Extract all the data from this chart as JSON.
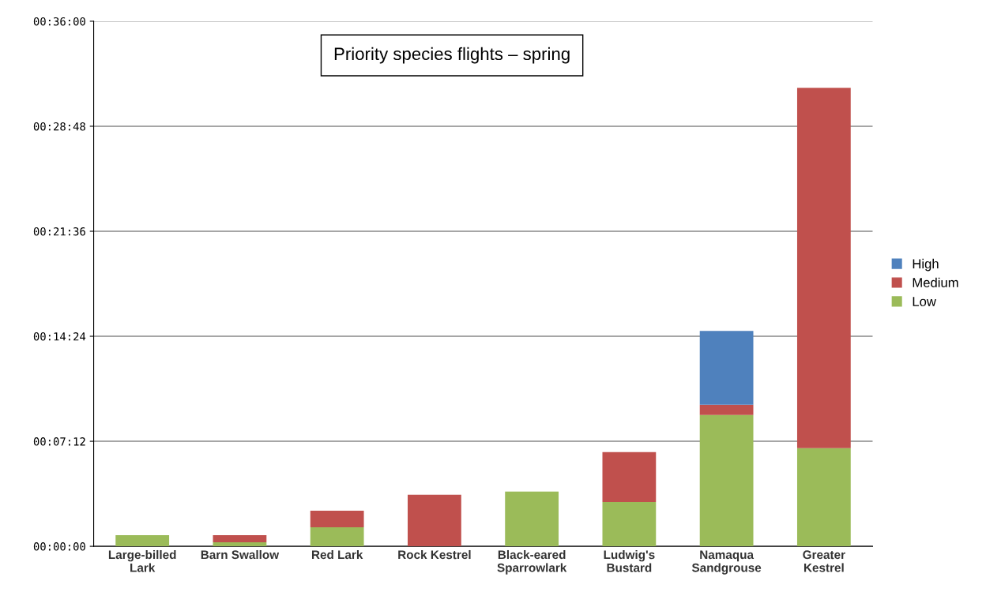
{
  "chart_data": {
    "type": "bar",
    "title": "Priority species flights – spring",
    "stacked": true,
    "categories": [
      "Large-billed Lark",
      "Barn Swallow",
      "Red Lark",
      "Rock Kestrel",
      "Black-eared Sparrowlark",
      "Ludwig's Bustard",
      "Namaqua Sandgrouse",
      "Greater Kestrel"
    ],
    "series": [
      {
        "name": "Low",
        "color": "#9bbb59",
        "values": [
          0.76,
          0.27,
          1.3,
          0,
          3.75,
          3.04,
          9.0,
          6.73
        ]
      },
      {
        "name": "Medium",
        "color": "#c0504d",
        "values": [
          0,
          0.49,
          1.14,
          3.53,
          0,
          3.42,
          0.71,
          24.7
        ]
      },
      {
        "name": "High",
        "color": "#4f81bd",
        "values": [
          0,
          0,
          0,
          0,
          0,
          0,
          5.05,
          0
        ]
      }
    ],
    "ylim": [
      0,
      36
    ],
    "yticks": [
      {
        "value": 0,
        "label": "00:00:00"
      },
      {
        "value": 7.2,
        "label": "00:07:12"
      },
      {
        "value": 14.4,
        "label": "00:14:24"
      },
      {
        "value": 21.6,
        "label": "00:21:36"
      },
      {
        "value": 28.8,
        "label": "00:28:48"
      },
      {
        "value": 36,
        "label": "00:36:00"
      }
    ],
    "grid": "y",
    "legend": "right"
  }
}
